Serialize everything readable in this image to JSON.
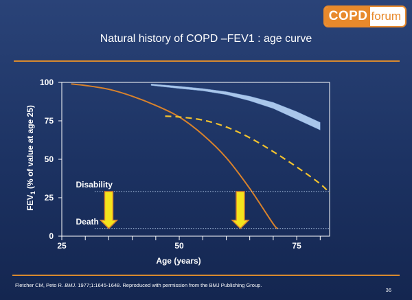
{
  "logo": {
    "part1": "COPD",
    "part2": "forum"
  },
  "slide_title": "Natural history of COPD –FEV1 : age curve",
  "footer": {
    "citation_authors": "Fletcher CM, Peto R.",
    "citation_journal": "BMJ.",
    "citation_rest": "1977;1:1645-1648. Reproduced with permission from the BMJ Publishing Group.",
    "page_number": "36"
  },
  "colors": {
    "accent": "#d98a2e",
    "line_smoker": "#d9822b",
    "line_stopped": "#f2c22e",
    "band_nonsmoker": "#a9c6ea",
    "arrow_fill": "#f4e41c",
    "arrow_stroke": "#d9822b"
  },
  "chart_data": {
    "type": "line",
    "ylabel_main": "FEV",
    "ylabel_sub": "1",
    "ylabel_rest": " (% of value at age 25)",
    "xlabel": "Age (years)",
    "xlim": [
      25,
      82
    ],
    "ylim": [
      0,
      100
    ],
    "x_major_ticks": [
      25,
      50,
      75
    ],
    "x_minor_ticks": [
      30,
      35,
      40,
      45,
      55,
      60,
      65,
      70,
      80
    ],
    "y_ticks": [
      0,
      25,
      50,
      75,
      100
    ],
    "series": [
      {
        "kind": "band",
        "upper": {
          "x": [
            44,
            50,
            55,
            60,
            65,
            70,
            75,
            80
          ],
          "y": [
            99,
            97.5,
            96,
            94,
            91,
            87,
            81,
            74
          ]
        },
        "lower": {
          "x": [
            44,
            50,
            55,
            60,
            65,
            70,
            75,
            80
          ],
          "y": [
            98,
            96,
            94.5,
            92,
            88,
            83,
            76,
            69
          ]
        }
      },
      {
        "kind": "line",
        "x": [
          27,
          30,
          35,
          40,
          45,
          50,
          55,
          60,
          65,
          70,
          71
        ],
        "y": [
          99,
          98,
          95.5,
          91,
          85,
          77.5,
          66,
          51,
          31,
          8,
          5
        ]
      },
      {
        "kind": "dashed-line",
        "x": [
          47,
          50,
          55,
          60,
          65,
          70,
          75,
          80,
          82
        ],
        "y": [
          78,
          77.5,
          75.5,
          71,
          64,
          55,
          45,
          34,
          28
        ]
      }
    ],
    "reference_lines": [
      {
        "label": "Disability",
        "y": 29
      },
      {
        "label": "Death",
        "y": 5
      }
    ],
    "arrows": [
      {
        "x": 35
      },
      {
        "x": 63
      }
    ]
  }
}
